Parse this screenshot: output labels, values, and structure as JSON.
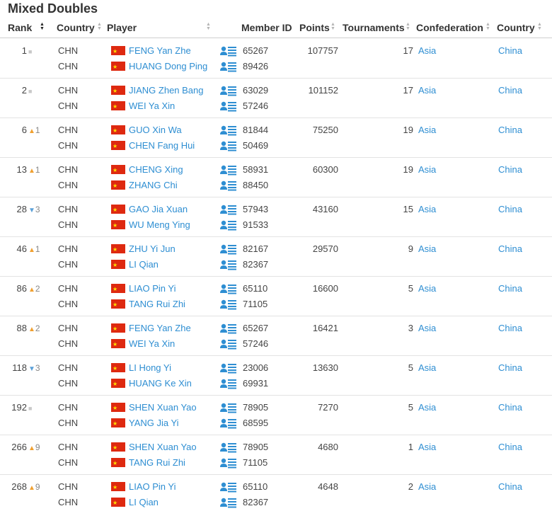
{
  "title": "Mixed Doubles",
  "headers": {
    "rank": "Rank",
    "country": "Country",
    "player": "Player",
    "member_id": "Member ID",
    "points": "Points",
    "tournaments": "Tournaments",
    "confederation": "Confederation",
    "country2": "Country"
  },
  "colors": {
    "link": "#2e8ed2",
    "up": "#f0a030",
    "down": "#5aa0d8",
    "flag": "#de2910"
  },
  "rows": [
    {
      "rank": "1",
      "change_dir": "same",
      "change": "",
      "countries": [
        "CHN",
        "CHN"
      ],
      "players": [
        "FENG Yan Zhe",
        "HUANG Dong Ping"
      ],
      "ids": [
        "65267",
        "89426"
      ],
      "points": "107757",
      "tournaments": "17",
      "confederation": "Asia",
      "country": "China"
    },
    {
      "rank": "2",
      "change_dir": "same",
      "change": "",
      "countries": [
        "CHN",
        "CHN"
      ],
      "players": [
        "JIANG Zhen Bang",
        "WEI Ya Xin"
      ],
      "ids": [
        "63029",
        "57246"
      ],
      "points": "101152",
      "tournaments": "17",
      "confederation": "Asia",
      "country": "China"
    },
    {
      "rank": "6",
      "change_dir": "up",
      "change": "1",
      "countries": [
        "CHN",
        "CHN"
      ],
      "players": [
        "GUO Xin Wa",
        "CHEN Fang Hui"
      ],
      "ids": [
        "81844",
        "50469"
      ],
      "points": "75250",
      "tournaments": "19",
      "confederation": "Asia",
      "country": "China"
    },
    {
      "rank": "13",
      "change_dir": "up",
      "change": "1",
      "countries": [
        "CHN",
        "CHN"
      ],
      "players": [
        "CHENG Xing",
        "ZHANG Chi"
      ],
      "ids": [
        "58931",
        "88450"
      ],
      "points": "60300",
      "tournaments": "19",
      "confederation": "Asia",
      "country": "China"
    },
    {
      "rank": "28",
      "change_dir": "down",
      "change": "3",
      "countries": [
        "CHN",
        "CHN"
      ],
      "players": [
        "GAO Jia Xuan",
        "WU Meng Ying"
      ],
      "ids": [
        "57943",
        "91533"
      ],
      "points": "43160",
      "tournaments": "15",
      "confederation": "Asia",
      "country": "China"
    },
    {
      "rank": "46",
      "change_dir": "up",
      "change": "1",
      "countries": [
        "CHN",
        "CHN"
      ],
      "players": [
        "ZHU Yi Jun",
        "LI Qian"
      ],
      "ids": [
        "82167",
        "82367"
      ],
      "points": "29570",
      "tournaments": "9",
      "confederation": "Asia",
      "country": "China"
    },
    {
      "rank": "86",
      "change_dir": "up",
      "change": "2",
      "countries": [
        "CHN",
        "CHN"
      ],
      "players": [
        "LIAO Pin Yi",
        "TANG Rui Zhi"
      ],
      "ids": [
        "65110",
        "71105"
      ],
      "points": "16600",
      "tournaments": "5",
      "confederation": "Asia",
      "country": "China"
    },
    {
      "rank": "88",
      "change_dir": "up",
      "change": "2",
      "countries": [
        "CHN",
        "CHN"
      ],
      "players": [
        "FENG Yan Zhe",
        "WEI Ya Xin"
      ],
      "ids": [
        "65267",
        "57246"
      ],
      "points": "16421",
      "tournaments": "3",
      "confederation": "Asia",
      "country": "China"
    },
    {
      "rank": "118",
      "change_dir": "down",
      "change": "3",
      "countries": [
        "CHN",
        "CHN"
      ],
      "players": [
        "LI Hong Yi",
        "HUANG Ke Xin"
      ],
      "ids": [
        "23006",
        "69931"
      ],
      "points": "13630",
      "tournaments": "5",
      "confederation": "Asia",
      "country": "China"
    },
    {
      "rank": "192",
      "change_dir": "same",
      "change": "",
      "countries": [
        "CHN",
        "CHN"
      ],
      "players": [
        "SHEN Xuan Yao",
        "YANG Jia Yi"
      ],
      "ids": [
        "78905",
        "68595"
      ],
      "points": "7270",
      "tournaments": "5",
      "confederation": "Asia",
      "country": "China"
    },
    {
      "rank": "266",
      "change_dir": "up",
      "change": "9",
      "countries": [
        "CHN",
        "CHN"
      ],
      "players": [
        "SHEN Xuan Yao",
        "TANG Rui Zhi"
      ],
      "ids": [
        "78905",
        "71105"
      ],
      "points": "4680",
      "tournaments": "1",
      "confederation": "Asia",
      "country": "China"
    },
    {
      "rank": "268",
      "change_dir": "up",
      "change": "9",
      "countries": [
        "CHN",
        "CHN"
      ],
      "players": [
        "LIAO Pin Yi",
        "LI Qian"
      ],
      "ids": [
        "65110",
        "82367"
      ],
      "points": "4648",
      "tournaments": "2",
      "confederation": "Asia",
      "country": "China"
    }
  ]
}
